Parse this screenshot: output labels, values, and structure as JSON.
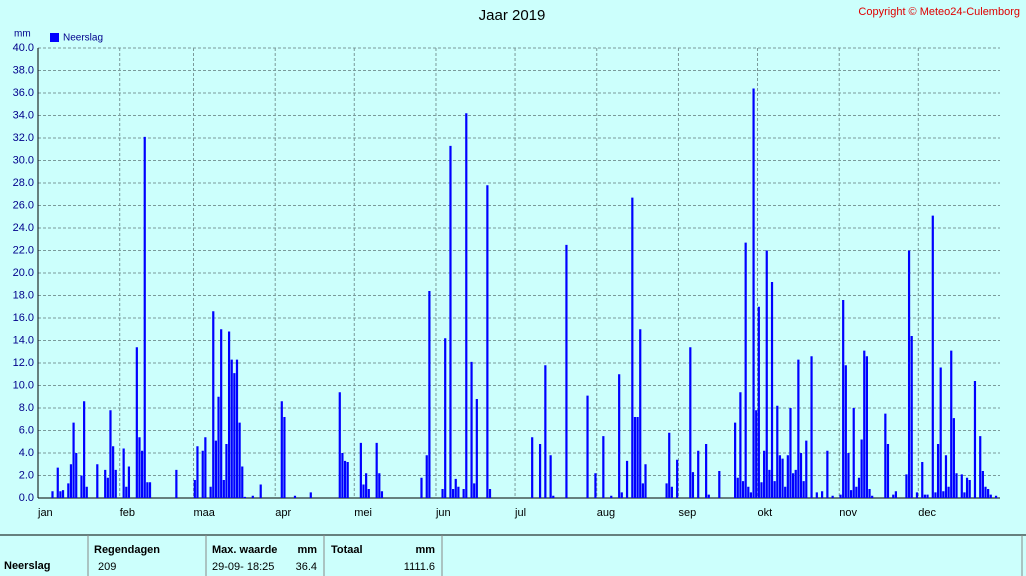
{
  "chart_data": {
    "type": "bar",
    "title": "Jaar 2019",
    "copyright": "Copyright © Meteo24-Culemborg",
    "y_label": "mm",
    "categories": [
      "jan",
      null,
      null,
      null,
      null,
      null,
      null,
      null,
      null,
      null,
      null,
      null,
      null,
      null,
      null,
      null,
      null,
      null,
      null,
      null,
      null,
      null,
      null,
      null,
      null,
      null,
      null,
      null,
      null,
      null,
      null,
      "feb",
      null,
      null,
      null,
      null,
      null,
      null,
      null,
      null,
      null,
      null,
      null,
      null,
      null,
      null,
      null,
      null,
      null,
      null,
      null,
      null,
      null,
      null,
      null,
      null,
      null,
      null,
      null,
      "maa",
      null,
      null,
      null,
      null,
      null,
      null,
      null,
      null,
      null,
      null,
      null,
      null,
      null,
      null,
      null,
      null,
      null,
      null,
      null,
      null,
      null,
      null,
      null,
      null,
      null,
      null,
      null,
      null,
      null,
      null,
      "apr",
      null,
      null,
      null,
      null,
      null,
      null,
      null,
      null,
      null,
      null,
      null,
      null,
      null,
      null,
      null,
      null,
      null,
      null,
      null,
      null,
      null,
      null,
      null,
      null,
      null,
      null,
      null,
      null,
      null,
      "mei",
      null,
      null,
      null,
      null,
      null,
      null,
      null,
      null,
      null,
      null,
      null,
      null,
      null,
      null,
      null,
      null,
      null,
      null,
      null,
      null,
      null,
      null,
      null,
      null,
      null,
      null,
      null,
      null,
      null,
      null,
      "jun",
      null,
      null,
      null,
      null,
      null,
      null,
      null,
      null,
      null,
      null,
      null,
      null,
      null,
      null,
      null,
      null,
      null,
      null,
      null,
      null,
      null,
      null,
      null,
      null,
      null,
      null,
      null,
      null,
      null,
      "jul",
      null,
      null,
      null,
      null,
      null,
      null,
      null,
      null,
      null,
      null,
      null,
      null,
      null,
      null,
      null,
      null,
      null,
      null,
      null,
      null,
      null,
      null,
      null,
      null,
      null,
      null,
      null,
      null,
      null,
      null,
      "aug",
      null,
      null,
      null,
      null,
      null,
      null,
      null,
      null,
      null,
      null,
      null,
      null,
      null,
      null,
      null,
      null,
      null,
      null,
      null,
      null,
      null,
      null,
      null,
      null,
      null,
      null,
      null,
      null,
      null,
      null,
      "sep",
      null,
      null,
      null,
      null,
      null,
      null,
      null,
      null,
      null,
      null,
      null,
      null,
      null,
      null,
      null,
      null,
      null,
      null,
      null,
      null,
      null,
      null,
      null,
      null,
      null,
      null,
      null,
      null,
      null,
      "okt",
      null,
      null,
      null,
      null,
      null,
      null,
      null,
      null,
      null,
      null,
      null,
      null,
      null,
      null,
      null,
      null,
      null,
      null,
      null,
      null,
      null,
      null,
      null,
      null,
      null,
      null,
      null,
      null,
      null,
      null,
      "nov",
      null,
      null,
      null,
      null,
      null,
      null,
      null,
      null,
      null,
      null,
      null,
      null,
      null,
      null,
      null,
      null,
      null,
      null,
      null,
      null,
      null,
      null,
      null,
      null,
      null,
      null,
      null,
      null,
      null,
      "dec",
      null,
      null,
      null,
      null,
      null,
      null,
      null,
      null,
      null,
      null,
      null,
      null,
      null,
      null,
      null,
      null,
      null,
      null,
      null,
      null,
      null,
      null,
      null,
      null,
      null,
      null,
      null,
      null,
      null,
      null
    ],
    "series": [
      {
        "name": "Neerslag",
        "color": "#0000ff",
        "values": [
          0,
          0,
          0,
          0,
          0,
          0.6,
          0,
          2.7,
          0.6,
          0.7,
          0,
          1.3,
          3,
          6.7,
          4,
          0,
          2,
          8.6,
          1,
          0,
          0,
          0,
          3,
          0,
          0,
          2.5,
          1.8,
          7.8,
          4.6,
          2.5,
          0,
          0,
          4.4,
          1,
          2.8,
          0,
          0,
          13.4,
          5.4,
          4.2,
          32.1,
          1.4,
          1.4,
          0,
          0,
          0,
          0,
          0,
          0,
          0,
          0,
          0,
          2.5,
          0,
          0,
          0,
          0,
          0,
          0,
          1.6,
          4.6,
          0,
          4.2,
          5.4,
          0,
          1,
          16.6,
          5.1,
          9,
          15,
          1.6,
          4.8,
          14.8,
          12.3,
          11.1,
          12.3,
          6.7,
          2.8,
          0.1,
          0,
          0,
          0.2,
          0,
          0,
          1.2,
          0,
          0,
          0,
          0,
          0,
          0,
          0,
          8.6,
          7.2,
          0,
          0,
          0,
          0.2,
          0,
          0,
          0,
          0,
          0,
          0.5,
          0,
          0,
          0,
          0,
          0,
          0,
          0,
          0,
          0,
          0,
          9.4,
          4,
          3.3,
          3.2,
          0,
          0,
          0,
          0,
          4.9,
          1.2,
          2.2,
          0.8,
          0,
          0,
          4.9,
          2.2,
          0.6,
          0,
          0,
          0,
          0,
          0,
          0,
          0,
          0,
          0,
          0,
          0,
          0,
          0,
          0,
          1.8,
          0,
          3.8,
          18.4,
          0,
          0,
          0,
          0,
          0.8,
          14.2,
          0,
          31.3,
          0.8,
          1.7,
          1,
          0,
          0.8,
          34.2,
          0,
          12.1,
          1.3,
          8.8,
          0,
          0,
          0,
          27.8,
          0.8,
          0,
          0,
          0,
          0,
          0,
          0,
          0,
          0,
          0,
          0,
          0,
          0,
          0,
          0,
          0,
          5.4,
          0,
          0,
          4.8,
          0,
          11.8,
          0,
          3.8,
          0.2,
          0,
          0,
          0,
          0,
          22.5,
          0,
          0,
          0,
          0,
          0,
          0,
          0,
          9.1,
          0,
          0,
          2.2,
          0,
          0,
          5.5,
          0,
          0,
          0.2,
          0,
          0,
          11,
          0.5,
          0,
          3.3,
          0,
          26.7,
          7.2,
          7.2,
          15,
          1.3,
          3,
          0,
          0,
          0,
          0,
          0,
          0,
          0,
          1.3,
          5.8,
          1,
          0,
          3.4,
          0,
          0,
          0,
          0,
          13.4,
          2.3,
          0,
          4.2,
          0,
          0,
          4.8,
          0.3,
          0,
          0,
          0,
          2.4,
          0,
          0,
          0,
          0,
          0,
          6.7,
          1.8,
          9.4,
          1.5,
          22.7,
          1,
          0.5,
          36.4,
          7.8,
          17,
          1.4,
          4.2,
          22,
          2.5,
          19.2,
          1.5,
          8.2,
          3.8,
          3.5,
          1,
          3.8,
          8,
          2.2,
          2.5,
          12.3,
          4,
          1.5,
          5.1,
          0,
          12.6,
          0,
          0.5,
          0,
          0.6,
          0,
          4.2,
          0,
          0.2,
          0,
          0,
          0.3,
          17.6,
          11.8,
          4,
          0.7,
          8,
          1,
          1.8,
          5.2,
          13.1,
          12.6,
          0.8,
          0.2,
          0,
          0,
          0,
          0,
          7.5,
          4.8,
          0,
          0.3,
          0.6,
          0,
          0,
          0,
          2.1,
          22,
          14.4,
          0,
          0.5,
          0,
          3.2,
          0.3,
          0.3,
          0,
          25.1,
          0.5,
          4.8,
          11.6,
          0.6,
          3.8,
          1,
          13.1,
          7.1,
          2.2,
          0,
          2.1,
          0.5,
          1.8,
          1.6,
          0,
          10.4,
          0,
          5.5,
          2.4,
          1,
          0.8,
          0.3,
          0,
          0.2,
          0
        ]
      }
    ],
    "ylim": [
      0,
      40
    ],
    "yticks": [
      {
        "value": 0,
        "label": "0.0"
      },
      {
        "value": 2,
        "label": "2.0"
      },
      {
        "value": 4,
        "label": "4.0"
      },
      {
        "value": 6,
        "label": "6.0"
      },
      {
        "value": 8,
        "label": "8.0"
      },
      {
        "value": 10,
        "label": "10.0"
      },
      {
        "value": 12,
        "label": "12.0"
      },
      {
        "value": 14,
        "label": "14.0"
      },
      {
        "value": 16,
        "label": "16.0"
      },
      {
        "value": 18,
        "label": "18.0"
      },
      {
        "value": 20,
        "label": "20.0"
      },
      {
        "value": 22,
        "label": "22.0"
      },
      {
        "value": 24,
        "label": "24.0"
      },
      {
        "value": 26,
        "label": "26.0"
      },
      {
        "value": 28,
        "label": "28.0"
      },
      {
        "value": 30,
        "label": "30.0"
      },
      {
        "value": 32,
        "label": "32.0"
      },
      {
        "value": 34,
        "label": "34.0"
      },
      {
        "value": 36,
        "label": "36.0"
      },
      {
        "value": 38,
        "label": "38.0"
      },
      {
        "value": 40,
        "label": "40.0"
      }
    ],
    "grid": true,
    "legend": "top-left"
  },
  "summary": {
    "row_label": "Neerslag",
    "rain_days_header": "Regendagen",
    "rain_days": 209,
    "max_header": "Max. waarde",
    "max_unit": "mm",
    "max_time": "29-09- 18:25",
    "max_value": 36.4,
    "total_header": "Totaal",
    "total_unit": "mm",
    "total_value": 1111.6
  }
}
